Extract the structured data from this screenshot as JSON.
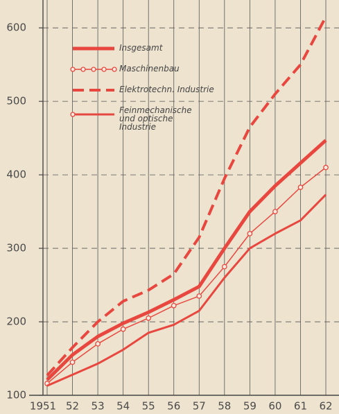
{
  "chart_data": {
    "type": "line",
    "categories": [
      "1951",
      "52",
      "53",
      "54",
      "55",
      "56",
      "57",
      "58",
      "59",
      "60",
      "61",
      "62"
    ],
    "series": [
      {
        "name": "Insgesamt",
        "color": "#e8473f",
        "style": "thick",
        "values": [
          121,
          155,
          180,
          198,
          213,
          230,
          248,
          300,
          350,
          385,
          416,
          447
        ]
      },
      {
        "name": "Maschinenbau",
        "color": "#e8473f",
        "style": "circles",
        "values": [
          116,
          145,
          170,
          190,
          205,
          222,
          235,
          275,
          320,
          350,
          383,
          410
        ]
      },
      {
        "name": "Elektrotechn. Industrie",
        "color": "#e8473f",
        "style": "dashed",
        "values": [
          127,
          165,
          200,
          228,
          243,
          265,
          315,
          395,
          465,
          510,
          550,
          615
        ]
      },
      {
        "name": "Feinmechanische und optische Industrie",
        "color": "#e8473f",
        "style": "solid",
        "values": [
          113,
          128,
          143,
          162,
          185,
          196,
          215,
          260,
          300,
          320,
          338,
          373
        ]
      }
    ],
    "ylim": [
      100,
      620
    ],
    "yticks": [
      100,
      200,
      300,
      400,
      500,
      600
    ],
    "grid": true
  }
}
